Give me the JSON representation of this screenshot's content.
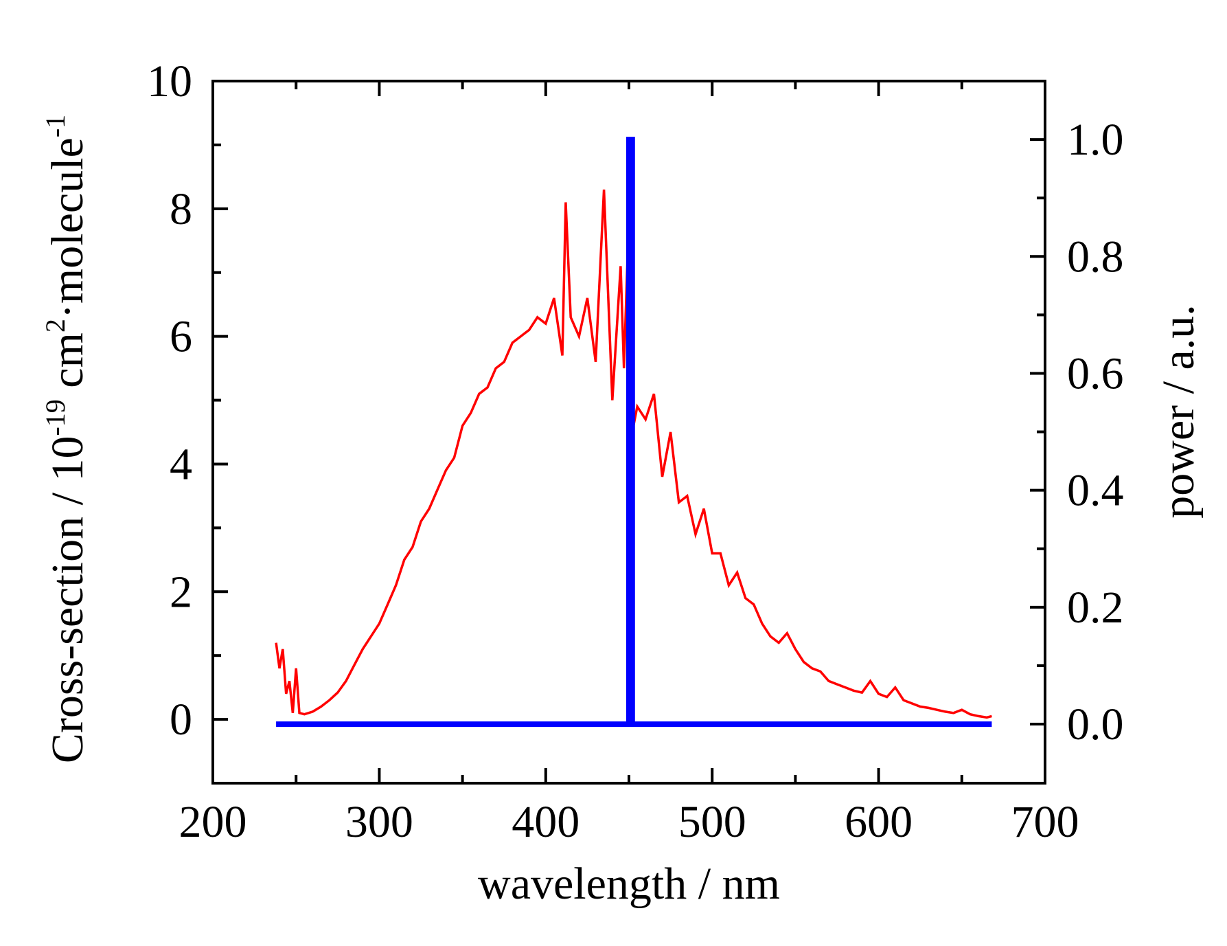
{
  "chart_data": {
    "type": "line",
    "xlabel": "wavelength / nm",
    "ylabel": {
      "prefix": "Cross-section / 10",
      "exp1": "-19",
      "mid": " cm",
      "exp2": "2",
      "mid2": "·molecule",
      "exp3": "-1"
    },
    "y2label": "power / a.u.",
    "xlim": [
      200,
      700
    ],
    "ylim": [
      -1,
      10
    ],
    "y2lim": [
      -0.101,
      1.1
    ],
    "x_ticks": [
      200,
      300,
      400,
      500,
      600,
      700
    ],
    "x_tick_labels": [
      "200",
      "300",
      "400",
      "500",
      "600",
      "700"
    ],
    "y_ticks": [
      0,
      2,
      4,
      6,
      8,
      10
    ],
    "y_tick_labels": [
      "0",
      "2",
      "4",
      "6",
      "8",
      "10"
    ],
    "y2_ticks": [
      0.0,
      0.2,
      0.4,
      0.6,
      0.8,
      1.0
    ],
    "y2_tick_labels": [
      "0.0",
      "0.2",
      "0.4",
      "0.6",
      "0.8",
      "1.0"
    ],
    "grid": false,
    "series": [
      {
        "name": "cross-section",
        "axis": "left",
        "color": "#ff0000",
        "x": [
          238,
          240,
          242,
          244,
          246,
          248,
          250,
          252,
          255,
          260,
          265,
          270,
          275,
          280,
          285,
          290,
          295,
          300,
          305,
          310,
          315,
          320,
          325,
          330,
          335,
          340,
          345,
          350,
          355,
          360,
          365,
          370,
          375,
          380,
          385,
          390,
          395,
          400,
          405,
          410,
          412,
          415,
          420,
          425,
          430,
          435,
          440,
          445,
          447,
          450,
          452,
          455,
          460,
          465,
          470,
          475,
          480,
          485,
          490,
          495,
          500,
          505,
          510,
          515,
          520,
          525,
          530,
          535,
          540,
          545,
          550,
          555,
          560,
          565,
          570,
          575,
          580,
          585,
          590,
          595,
          600,
          605,
          610,
          615,
          620,
          625,
          630,
          635,
          640,
          645,
          650,
          655,
          660,
          665,
          668
        ],
        "y": [
          1.2,
          0.8,
          1.1,
          0.4,
          0.6,
          0.1,
          0.8,
          0.1,
          0.08,
          0.12,
          0.2,
          0.3,
          0.42,
          0.6,
          0.85,
          1.1,
          1.3,
          1.5,
          1.8,
          2.1,
          2.5,
          2.7,
          3.1,
          3.3,
          3.6,
          3.9,
          4.1,
          4.6,
          4.8,
          5.1,
          5.2,
          5.5,
          5.6,
          5.9,
          6.0,
          6.1,
          6.3,
          6.2,
          6.6,
          5.7,
          8.1,
          6.3,
          6.0,
          6.6,
          5.6,
          8.3,
          5.0,
          7.1,
          5.5,
          7.9,
          4.5,
          4.9,
          4.7,
          5.1,
          3.8,
          4.5,
          3.4,
          3.5,
          2.9,
          3.3,
          2.6,
          2.6,
          2.1,
          2.3,
          1.9,
          1.8,
          1.5,
          1.3,
          1.2,
          1.35,
          1.1,
          0.9,
          0.8,
          0.75,
          0.6,
          0.55,
          0.5,
          0.45,
          0.42,
          0.6,
          0.4,
          0.35,
          0.5,
          0.3,
          0.25,
          0.2,
          0.18,
          0.15,
          0.12,
          0.1,
          0.15,
          0.08,
          0.05,
          0.03,
          0.05
        ]
      },
      {
        "name": "power",
        "axis": "right",
        "color": "#0000ff",
        "x": [
          238,
          450,
          450,
          452,
          452,
          668
        ],
        "y": [
          0.0,
          0.0,
          1.0,
          1.0,
          0.0,
          0.0
        ]
      }
    ]
  }
}
